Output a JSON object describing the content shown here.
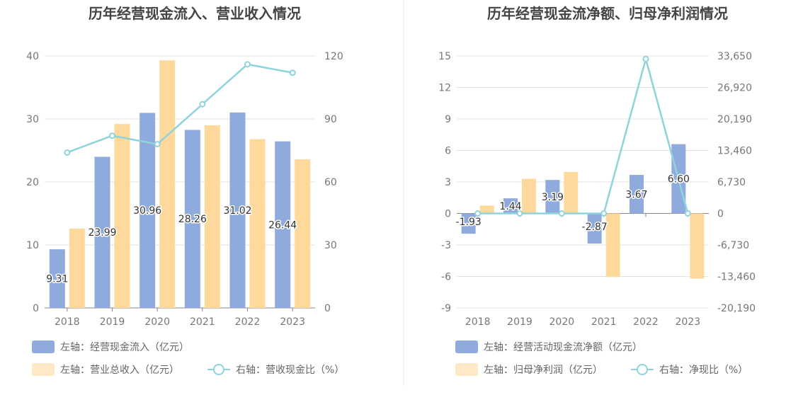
{
  "colors": {
    "bar1": "#8faadc",
    "bar2": "#ffd99b",
    "line": "#8fd3dc",
    "grid": "#e3e3e3",
    "axis": "#888888"
  },
  "chart_data": [
    {
      "type": "bar",
      "title": "历年经营现金流入、营业收入情况",
      "categories": [
        "2018",
        "2019",
        "2020",
        "2021",
        "2022",
        "2023"
      ],
      "left_axis": {
        "ticks": [
          "0",
          "10",
          "20",
          "30",
          "40"
        ],
        "ylim": [
          0,
          40
        ]
      },
      "right_axis": {
        "ticks": [
          "0",
          "30",
          "60",
          "90",
          "120"
        ],
        "ylim": [
          0,
          120
        ]
      },
      "grid": true,
      "legend_position": "bottom-left",
      "series": [
        {
          "name": "左轴：经营现金流入（亿元）",
          "kind": "bar",
          "axis": "left",
          "values": [
            9.31,
            23.99,
            30.96,
            28.26,
            31.02,
            26.44
          ],
          "labels": [
            "9.31",
            "23.99",
            "30.96",
            "28.26",
            "31.02",
            "26.44"
          ]
        },
        {
          "name": "左轴：营业总收入（亿元）",
          "kind": "bar",
          "axis": "left",
          "values": [
            12.6,
            29.2,
            39.3,
            29.0,
            26.8,
            23.6
          ]
        },
        {
          "name": "右轴：营收现金比（%）",
          "kind": "line",
          "axis": "right",
          "values": [
            74,
            82,
            78,
            97,
            116,
            112
          ]
        }
      ]
    },
    {
      "type": "bar",
      "title": "历年经营现金流净额、归母净利润情况",
      "categories": [
        "2018",
        "2019",
        "2020",
        "2021",
        "2022",
        "2023"
      ],
      "left_axis": {
        "ticks": [
          "-9",
          "-6",
          "-3",
          "0",
          "3",
          "6",
          "9",
          "12",
          "15"
        ],
        "ylim": [
          -9,
          15
        ]
      },
      "right_axis": {
        "ticks": [
          "-20,190",
          "-13,460",
          "-6,730",
          "0",
          "6,730",
          "13,460",
          "20,190",
          "26,920",
          "33,650"
        ],
        "ylim": [
          -20190,
          33650
        ]
      },
      "grid": true,
      "legend_position": "bottom-left",
      "series": [
        {
          "name": "左轴：经营活动现金流净额（亿元）",
          "kind": "bar",
          "axis": "left",
          "values": [
            -1.93,
            1.44,
            3.19,
            -2.87,
            3.67,
            6.6
          ],
          "labels": [
            "-1.93",
            "1.44",
            "3.19",
            "-2.87",
            "3.67",
            "6.60"
          ]
        },
        {
          "name": "左轴：归母净利润（亿元）",
          "kind": "bar",
          "axis": "left",
          "values": [
            0.75,
            3.3,
            3.95,
            -6.05,
            0,
            -6.2
          ]
        },
        {
          "name": "右轴：净现比（%）",
          "kind": "line",
          "axis": "right",
          "values": [
            0,
            0,
            0,
            0,
            33000,
            0
          ]
        }
      ]
    }
  ]
}
